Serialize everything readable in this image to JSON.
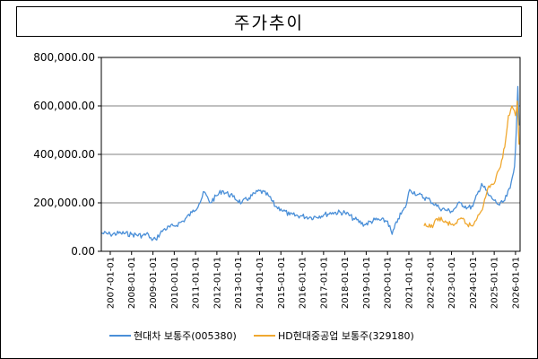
{
  "chart_data": {
    "type": "line",
    "title": "주가추이",
    "xlabel": "",
    "ylabel": "",
    "ylim": [
      0,
      800000
    ],
    "xlim": [
      "2006-08-01",
      "2026-03-20"
    ],
    "grid": true,
    "legend_position": "bottom",
    "yticks": [
      {
        "value": 0,
        "label": "0.00"
      },
      {
        "value": 200000,
        "label": "200,000.00"
      },
      {
        "value": 400000,
        "label": "400,000.00"
      },
      {
        "value": 600000,
        "label": "600,000.00"
      },
      {
        "value": 800000,
        "label": "800,000.00"
      }
    ],
    "xticks": [
      "2007-01-01",
      "2008-01-01",
      "2009-01-01",
      "2010-01-01",
      "2011-01-01",
      "2012-01-01",
      "2013-01-01",
      "2014-01-01",
      "2015-01-01",
      "2016-01-01",
      "2017-01-01",
      "2018-01-01",
      "2019-01-01",
      "2020-01-01",
      "2021-01-01",
      "2022-01-01",
      "2023-01-01",
      "2024-01-01",
      "2025-01-01",
      "2026-01-01"
    ],
    "series": [
      {
        "name": "현대차 보통주(005380)",
        "color": "#4a8fd8",
        "points": [
          [
            "2006-08-01",
            75000
          ],
          [
            "2007-01-01",
            70000
          ],
          [
            "2007-07-01",
            75000
          ],
          [
            "2008-01-01",
            70000
          ],
          [
            "2008-07-01",
            65000
          ],
          [
            "2008-10-15",
            70000
          ],
          [
            "2008-12-15",
            45000
          ],
          [
            "2009-02-15",
            50000
          ],
          [
            "2009-07-01",
            90000
          ],
          [
            "2010-01-01",
            105000
          ],
          [
            "2010-06-01",
            125000
          ],
          [
            "2010-11-01",
            160000
          ],
          [
            "2011-03-01",
            195000
          ],
          [
            "2011-06-01",
            245000
          ],
          [
            "2011-09-01",
            200000
          ],
          [
            "2012-01-01",
            230000
          ],
          [
            "2012-04-01",
            250000
          ],
          [
            "2012-10-01",
            225000
          ],
          [
            "2013-03-01",
            200000
          ],
          [
            "2013-07-01",
            220000
          ],
          [
            "2014-01-01",
            250000
          ],
          [
            "2014-06-01",
            230000
          ],
          [
            "2014-10-01",
            185000
          ],
          [
            "2015-01-01",
            175000
          ],
          [
            "2015-06-01",
            150000
          ],
          [
            "2016-01-01",
            145000
          ],
          [
            "2016-06-01",
            140000
          ],
          [
            "2017-01-01",
            150000
          ],
          [
            "2017-06-01",
            160000
          ],
          [
            "2018-01-01",
            160000
          ],
          [
            "2018-06-01",
            135000
          ],
          [
            "2018-12-01",
            110000
          ],
          [
            "2019-06-01",
            130000
          ],
          [
            "2020-01-01",
            125000
          ],
          [
            "2020-03-20",
            70000
          ],
          [
            "2020-07-01",
            135000
          ],
          [
            "2020-11-01",
            180000
          ],
          [
            "2021-01-15",
            255000
          ],
          [
            "2021-06-01",
            235000
          ],
          [
            "2022-01-01",
            210000
          ],
          [
            "2022-06-01",
            180000
          ],
          [
            "2022-10-01",
            170000
          ],
          [
            "2023-01-01",
            165000
          ],
          [
            "2023-06-01",
            200000
          ],
          [
            "2023-10-01",
            180000
          ],
          [
            "2024-01-01",
            185000
          ],
          [
            "2024-06-01",
            280000
          ],
          [
            "2024-10-01",
            230000
          ],
          [
            "2025-01-01",
            210000
          ],
          [
            "2025-04-01",
            190000
          ],
          [
            "2025-07-01",
            210000
          ],
          [
            "2025-10-01",
            260000
          ],
          [
            "2025-12-15",
            350000
          ],
          [
            "2026-01-15",
            500000
          ],
          [
            "2026-02-10",
            680000
          ],
          [
            "2026-03-01",
            520000
          ]
        ]
      },
      {
        "name": "HD현대중공업 보통주(329180)",
        "color": "#f0a830",
        "points": [
          [
            "2021-09-17",
            105000
          ],
          [
            "2021-12-01",
            100000
          ],
          [
            "2022-03-01",
            110000
          ],
          [
            "2022-06-01",
            140000
          ],
          [
            "2022-09-01",
            120000
          ],
          [
            "2023-01-01",
            110000
          ],
          [
            "2023-04-01",
            115000
          ],
          [
            "2023-07-01",
            135000
          ],
          [
            "2023-10-01",
            110000
          ],
          [
            "2024-01-01",
            105000
          ],
          [
            "2024-04-01",
            150000
          ],
          [
            "2024-07-01",
            190000
          ],
          [
            "2024-10-01",
            270000
          ],
          [
            "2025-01-01",
            280000
          ],
          [
            "2025-04-01",
            340000
          ],
          [
            "2025-07-01",
            430000
          ],
          [
            "2025-09-01",
            560000
          ],
          [
            "2025-11-01",
            600000
          ],
          [
            "2026-01-01",
            560000
          ],
          [
            "2026-02-01",
            620000
          ],
          [
            "2026-03-01",
            440000
          ]
        ]
      }
    ]
  }
}
